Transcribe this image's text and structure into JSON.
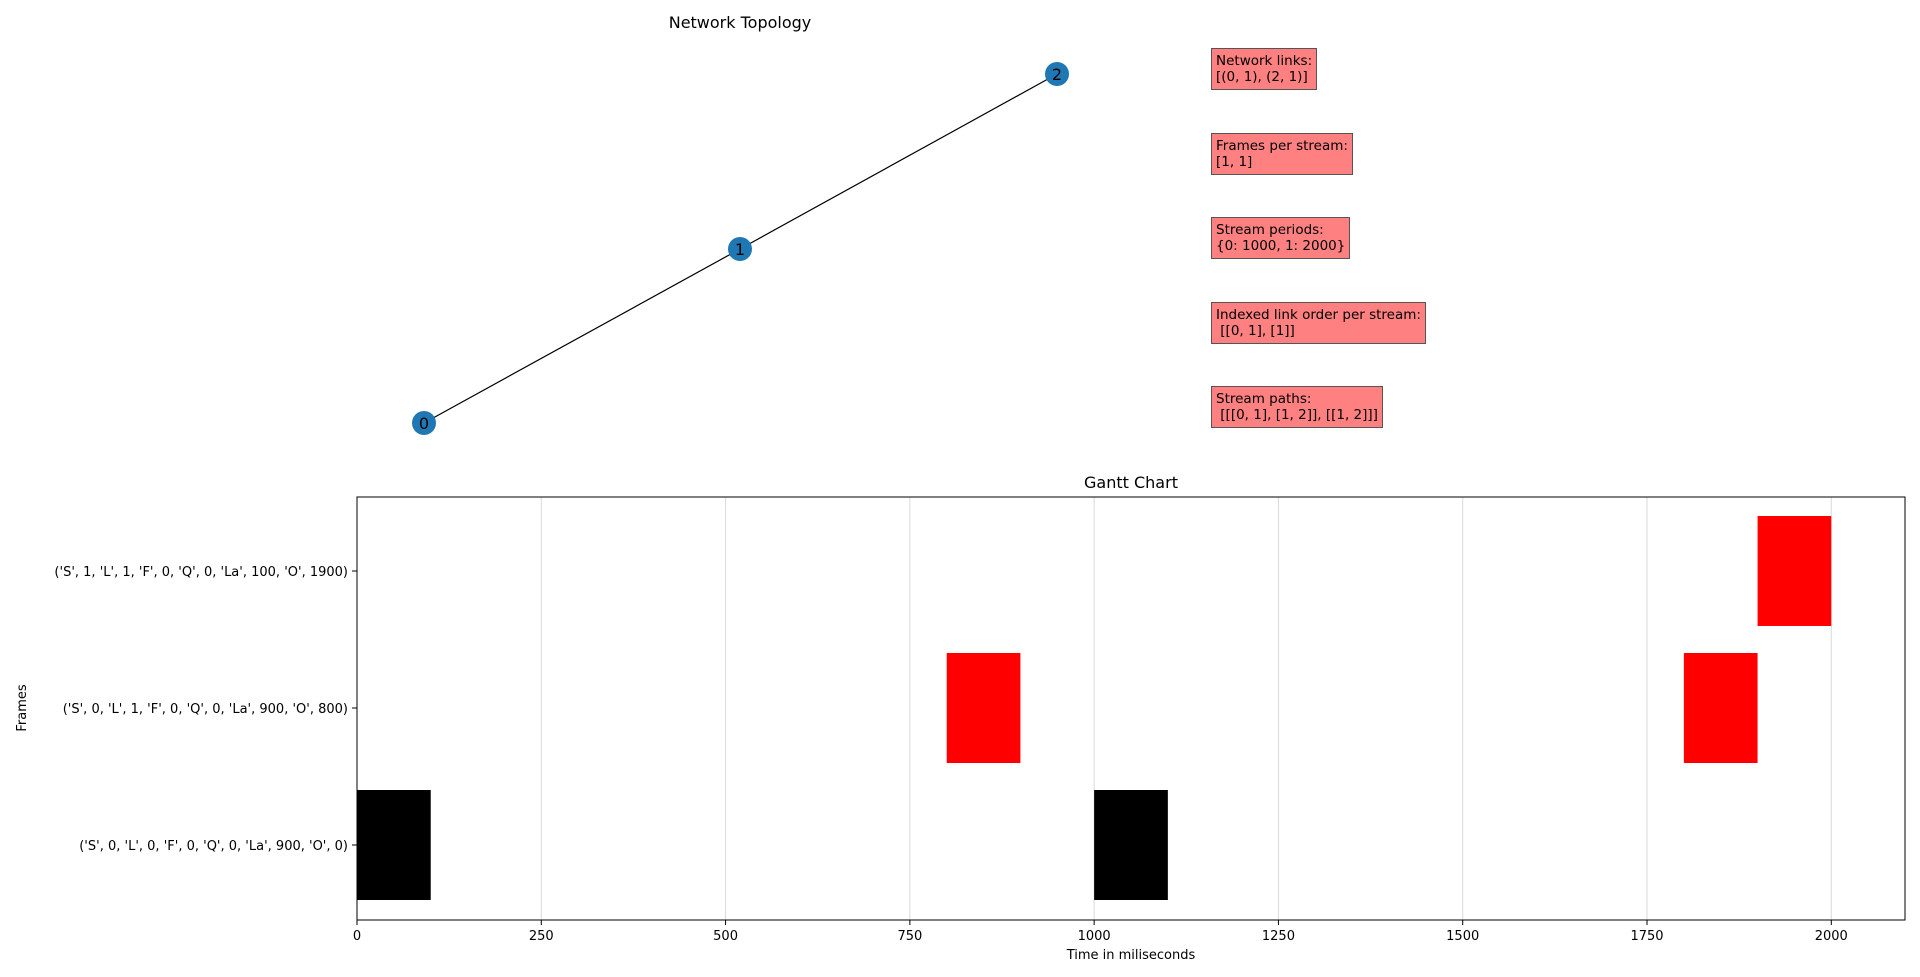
{
  "topology": {
    "title": "Network  Topology",
    "nodes": [
      {
        "id": "0",
        "label": "0"
      },
      {
        "id": "1",
        "label": "1"
      },
      {
        "id": "2",
        "label": "2"
      }
    ],
    "edges": [
      [
        "0",
        "1"
      ],
      [
        "1",
        "2"
      ]
    ],
    "node_color": "#1f77b4",
    "info_boxes": [
      {
        "title": "Network links:",
        "value": "[(0, 1), (2, 1)]"
      },
      {
        "title": "Frames per stream:",
        "value": "[1, 1]"
      },
      {
        "title": "Stream periods:",
        "value": "{0: 1000, 1: 2000}"
      },
      {
        "title": "Indexed link order per stream:",
        "value": " [[0, 1], [1]]"
      },
      {
        "title": "Stream paths:",
        "value": " [[[0, 1], [1, 2]], [[1, 2]]]"
      }
    ],
    "box_color": "#ff8080"
  },
  "chart_data": {
    "type": "gantt",
    "title": "Gantt Chart",
    "xlabel": "Time in miliseconds",
    "ylabel": "Frames",
    "xlim": [
      0,
      2100
    ],
    "xticks": [
      0,
      250,
      500,
      750,
      1000,
      1250,
      1500,
      1750,
      2000
    ],
    "grid": "vertical",
    "rows": [
      {
        "label": "('S', 0, 'L', 0, 'F', 0, 'Q', 0, 'La', 900, 'O', 0)",
        "bars": [
          {
            "start": 0,
            "end": 100,
            "color": "#000000"
          },
          {
            "start": 1000,
            "end": 1100,
            "color": "#000000"
          }
        ]
      },
      {
        "label": "('S', 0, 'L', 1, 'F', 0, 'Q', 0, 'La', 900, 'O', 800)",
        "bars": [
          {
            "start": 800,
            "end": 900,
            "color": "#ff0000"
          },
          {
            "start": 1800,
            "end": 1900,
            "color": "#ff0000"
          }
        ]
      },
      {
        "label": "('S', 1, 'L', 1, 'F', 0, 'Q', 0, 'La', 100, 'O', 1900)",
        "bars": [
          {
            "start": 1900,
            "end": 2000,
            "color": "#ff0000"
          }
        ]
      }
    ]
  }
}
